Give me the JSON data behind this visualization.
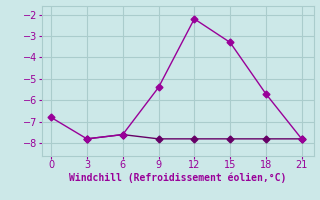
{
  "line1_x": [
    0,
    3,
    6,
    9,
    12,
    15,
    18,
    21
  ],
  "line1_y": [
    -6.8,
    -7.8,
    -7.6,
    -5.4,
    -2.2,
    -3.3,
    -5.7,
    -7.8
  ],
  "line2_x": [
    3,
    6,
    9,
    12,
    15,
    18,
    21
  ],
  "line2_y": [
    -7.8,
    -7.6,
    -7.8,
    -7.8,
    -7.8,
    -7.8,
    -7.8
  ],
  "line_color": "#990099",
  "line2_color": "#660066",
  "background_color": "#cce8e8",
  "grid_color": "#aacccc",
  "xlabel": "Windchill (Refroidissement éolien,°C)",
  "xlabel_color": "#990099",
  "xticks": [
    0,
    3,
    6,
    9,
    12,
    15,
    18,
    21
  ],
  "yticks": [
    -8,
    -7,
    -6,
    -5,
    -4,
    -3,
    -2
  ],
  "xlim": [
    -0.8,
    22.0
  ],
  "ylim": [
    -8.6,
    -1.6
  ],
  "tick_color": "#990099",
  "markersize": 3.5,
  "linewidth": 1.0
}
